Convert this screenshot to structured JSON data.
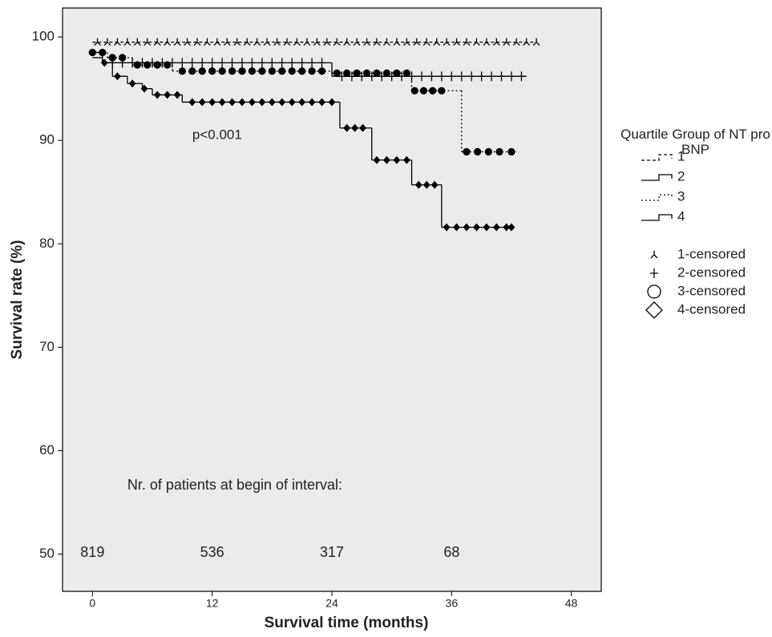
{
  "chart_data": {
    "type": "km",
    "xlabel": "Survival time (months)",
    "ylabel": "Survival rate (%)",
    "xlim": [
      -3,
      51
    ],
    "ylim": [
      46.4,
      102.8
    ],
    "xticks": [
      0,
      12,
      24,
      36,
      48
    ],
    "yticks": [
      50,
      60,
      70,
      80,
      90,
      100
    ],
    "annotation": "p<0.001",
    "at_risk_title": "Nr. of patients at begin of interval:",
    "at_risk": [
      {
        "x": 0,
        "n": 819
      },
      {
        "x": 12,
        "n": 536
      },
      {
        "x": 24,
        "n": 317
      },
      {
        "x": 36,
        "n": 68
      }
    ],
    "legend_title": "Quartile Group of NT pro BNP",
    "series": [
      {
        "name": "1",
        "censored_name": "1-censored",
        "dash": "4,3",
        "marker": "tri",
        "color": "#000000",
        "x": [
          0,
          44.5
        ],
        "values": [
          99.5,
          99.5
        ],
        "censored_x": [
          0.5,
          1.5,
          2.5,
          3.5,
          4.5,
          5.5,
          6.5,
          7.5,
          8.5,
          9.5,
          10.5,
          11.5,
          12.5,
          13.5,
          14.5,
          15.5,
          16.5,
          17.5,
          18.5,
          19.5,
          20.5,
          21.5,
          22.5,
          23.5,
          24.5,
          25.5,
          26.5,
          27.5,
          28.5,
          29.5,
          30.5,
          31.5,
          32.5,
          33.5,
          34.5,
          35.5,
          36.5,
          37.5,
          38.5,
          39.5,
          40.5,
          41.5,
          42.5,
          43.5,
          44.5
        ],
        "censored_values": [
          99.5,
          99.5,
          99.5,
          99.5,
          99.5,
          99.5,
          99.5,
          99.5,
          99.5,
          99.5,
          99.5,
          99.5,
          99.5,
          99.5,
          99.5,
          99.5,
          99.5,
          99.5,
          99.5,
          99.5,
          99.5,
          99.5,
          99.5,
          99.5,
          99.5,
          99.5,
          99.5,
          99.5,
          99.5,
          99.5,
          99.5,
          99.5,
          99.5,
          99.5,
          99.5,
          99.5,
          99.5,
          99.5,
          99.5,
          99.5,
          99.5,
          99.5,
          99.5,
          99.5,
          99.5
        ]
      },
      {
        "name": "2",
        "censored_name": "2-censored",
        "dash": "none",
        "marker": "plus",
        "color": "#000000",
        "x": [
          0,
          1,
          24,
          43.5
        ],
        "values": [
          98.5,
          97.5,
          96.2,
          96.2
        ],
        "censored_x": [
          2,
          3,
          4,
          5,
          6,
          7,
          8,
          9,
          10,
          11,
          12,
          13,
          14,
          15,
          16,
          17,
          18,
          19,
          20,
          21,
          22,
          23,
          25,
          26,
          27,
          28,
          29,
          30,
          31,
          32,
          33,
          34,
          35,
          36,
          37,
          38,
          39,
          40,
          41,
          42,
          43
        ],
        "censored_values": [
          97.5,
          97.5,
          97.5,
          97.5,
          97.5,
          97.5,
          97.5,
          97.5,
          97.5,
          97.5,
          97.5,
          97.5,
          97.5,
          97.5,
          97.5,
          97.5,
          97.5,
          97.5,
          97.5,
          97.5,
          97.5,
          97.5,
          96.2,
          96.2,
          96.2,
          96.2,
          96.2,
          96.2,
          96.2,
          96.2,
          96.2,
          96.2,
          96.2,
          96.2,
          96.2,
          96.2,
          96.2,
          96.2,
          96.2,
          96.2,
          96.2
        ]
      },
      {
        "name": "3",
        "censored_name": "3-censored",
        "dash": "2,3",
        "marker": "circle",
        "color": "#000000",
        "x": [
          0,
          1.5,
          4,
          8,
          24,
          32,
          37,
          42.5
        ],
        "values": [
          98.5,
          98,
          97.3,
          96.7,
          96.5,
          94.8,
          88.9,
          88.9
        ],
        "censored_x": [
          0,
          1,
          2,
          3,
          4.5,
          5.5,
          6.5,
          7.5,
          9,
          10,
          11,
          12,
          13,
          14,
          15,
          16,
          17,
          18,
          19,
          20,
          21,
          22,
          23,
          24.5,
          25.5,
          26.5,
          27.5,
          28.5,
          29.5,
          30.5,
          31.5,
          32.3,
          33.2,
          34.1,
          35,
          37.5,
          38.6,
          39.7,
          40.8,
          42
        ],
        "censored_values": [
          98.5,
          98.5,
          98,
          98,
          97.3,
          97.3,
          97.3,
          97.3,
          96.7,
          96.7,
          96.7,
          96.7,
          96.7,
          96.7,
          96.7,
          96.7,
          96.7,
          96.7,
          96.7,
          96.7,
          96.7,
          96.7,
          96.7,
          96.5,
          96.5,
          96.5,
          96.5,
          96.5,
          96.5,
          96.5,
          96.5,
          94.8,
          94.8,
          94.8,
          94.8,
          88.9,
          88.9,
          88.9,
          88.9,
          88.9
        ]
      },
      {
        "name": "4",
        "censored_name": "4-censored",
        "dash": "none",
        "marker": "diamond",
        "color": "#000000",
        "x": [
          0,
          1,
          2,
          3.5,
          5,
          6,
          9,
          24.8,
          28,
          32,
          35,
          42
        ],
        "values": [
          98,
          97.5,
          96.2,
          95.5,
          95,
          94.4,
          93.7,
          91.2,
          88.1,
          85.7,
          81.6,
          81.6
        ],
        "censored_x": [
          1.2,
          2.5,
          4,
          5.2,
          6.5,
          7.5,
          8.5,
          10,
          11,
          12,
          13,
          14,
          15,
          16,
          17,
          18,
          19,
          20,
          21,
          22,
          23,
          24,
          25.5,
          26.3,
          27.1,
          28.5,
          29.5,
          30.5,
          31.5,
          32.7,
          33.5,
          34.3,
          35.5,
          36.5,
          37.5,
          38.5,
          39.5,
          40.5,
          41.5,
          42
        ],
        "censored_values": [
          97.5,
          96.2,
          95.5,
          95,
          94.4,
          94.4,
          94.4,
          93.7,
          93.7,
          93.7,
          93.7,
          93.7,
          93.7,
          93.7,
          93.7,
          93.7,
          93.7,
          93.7,
          93.7,
          93.7,
          93.7,
          93.7,
          91.2,
          91.2,
          91.2,
          88.1,
          88.1,
          88.1,
          88.1,
          85.7,
          85.7,
          85.7,
          81.6,
          81.6,
          81.6,
          81.6,
          81.6,
          81.6,
          81.6,
          81.6
        ]
      }
    ]
  }
}
